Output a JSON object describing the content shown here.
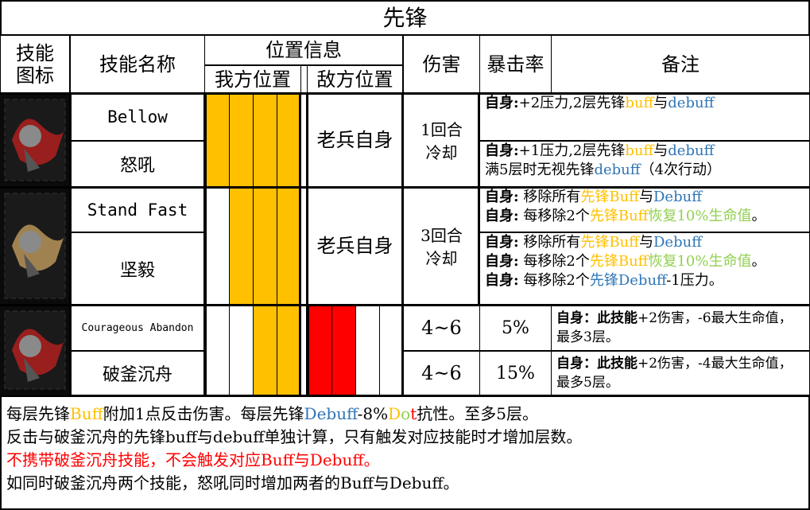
{
  "title": "先锋",
  "headers": {
    "icon": [
      "技能",
      "图标"
    ],
    "name": "技能名称",
    "position": "位置信息",
    "own": "我方位置",
    "enemy": "敌方位置",
    "damage": "伤害",
    "crit": "暴击率",
    "notes": "备注"
  },
  "colors": {
    "buff": "#ffc000",
    "debuff": "#2e75b6",
    "heal": "#92d050",
    "red": "#ff0000",
    "own_fill": "#ffc000",
    "enemy_fill": "#ff0000"
  },
  "groups": [
    {
      "icon": "bellow-skill-icon",
      "own": [
        1,
        1,
        1,
        1
      ],
      "enemy_text": "老兵自身",
      "cooldown": [
        "1回合",
        "冷却"
      ],
      "rows": [
        {
          "name": "Bellow",
          "notes": [
            [
              {
                "t": "自身:",
                "b": true
              },
              {
                "t": "+2压力,2层先锋"
              },
              {
                "t": "buff",
                "c": "buff"
              },
              {
                "t": "与"
              },
              {
                "t": "debuff",
                "c": "debuff"
              }
            ]
          ]
        },
        {
          "name": "怒吼",
          "notes": [
            [
              {
                "t": "自身:",
                "b": true
              },
              {
                "t": "+1压力,2层先锋"
              },
              {
                "t": "buff",
                "c": "buff"
              },
              {
                "t": "与"
              },
              {
                "t": "debuff",
                "c": "debuff"
              }
            ],
            [
              {
                "t": "满5层时无视先锋"
              },
              {
                "t": "debuff",
                "c": "debuff"
              },
              {
                "t": "（4次行动）"
              }
            ]
          ]
        }
      ]
    },
    {
      "icon": "stand-fast-skill-icon",
      "own": [
        0,
        1,
        1,
        1
      ],
      "enemy_text": "老兵自身",
      "cooldown": [
        "3回合",
        "冷却"
      ],
      "rows": [
        {
          "name": "Stand Fast",
          "notes": [
            [
              {
                "t": "自身:",
                "b": true
              },
              {
                "t": " 移除所有"
              },
              {
                "t": "先锋Buff",
                "c": "buff"
              },
              {
                "t": "与"
              },
              {
                "t": "Debuff",
                "c": "debuff"
              }
            ],
            [
              {
                "t": "自身:",
                "b": true
              },
              {
                "t": " 每移除2个"
              },
              {
                "t": "先锋Buff",
                "c": "buff"
              },
              {
                "t": "恢复10%生命值",
                "c": "heal"
              },
              {
                "t": "。"
              }
            ]
          ]
        },
        {
          "name": "坚毅",
          "notes": [
            [
              {
                "t": "自身:",
                "b": true
              },
              {
                "t": " 移除所有"
              },
              {
                "t": "先锋Buff",
                "c": "buff"
              },
              {
                "t": "与"
              },
              {
                "t": "Debuff",
                "c": "debuff"
              }
            ],
            [
              {
                "t": "自身:",
                "b": true
              },
              {
                "t": " 每移除2个"
              },
              {
                "t": "先锋Buff",
                "c": "buff"
              },
              {
                "t": "恢复10%生命值",
                "c": "heal"
              },
              {
                "t": "。"
              }
            ],
            [
              {
                "t": "自身:",
                "b": true
              },
              {
                "t": " 每移除2个"
              },
              {
                "t": "先锋Debuff",
                "c": "debuff"
              },
              {
                "t": "-1压力。"
              }
            ]
          ]
        }
      ]
    },
    {
      "icon": "courageous-abandon-skill-icon",
      "own": [
        0,
        0,
        1,
        1
      ],
      "enemy": [
        1,
        1,
        0,
        0
      ],
      "rows": [
        {
          "name": "Courageous Abandon",
          "damage": "4~6",
          "crit": "5%",
          "notes": [
            [
              {
                "t": "自身：此技能",
                "b": true
              },
              {
                "t": "+2伤害，-6最大生命值，最多3层。"
              }
            ]
          ]
        },
        {
          "name": "破釜沉舟",
          "damage": "4~6",
          "crit": "15%",
          "notes": [
            [
              {
                "t": "自身：此技能",
                "b": true
              },
              {
                "t": "+2伤害，-4最大生命值，最多5层。"
              }
            ]
          ]
        }
      ]
    }
  ],
  "footer": [
    [
      {
        "t": "每层先锋"
      },
      {
        "t": "Buff",
        "c": "buff"
      },
      {
        "t": "附加1点反击伤害。每层先锋"
      },
      {
        "t": "Debuff",
        "c": "debuff"
      },
      {
        "t": "-8%"
      },
      {
        "t": "D",
        "c": "buff"
      },
      {
        "t": "o",
        "c": "heal"
      },
      {
        "t": "t",
        "c": "red"
      },
      {
        "t": "抗性。至多5层。"
      }
    ],
    [
      {
        "t": "反击与破釜沉舟的先锋buff与debuff单独计算，只有触发对应技能时才增加层数。"
      }
    ],
    [
      {
        "t": "不携带破釜沉舟技能，不会触发对应Buff与Debuff。",
        "c": "red"
      }
    ],
    [
      {
        "t": "如同时破釜沉舟两个技能，怒吼同时增加两者的Buff与Debuff。"
      }
    ]
  ]
}
